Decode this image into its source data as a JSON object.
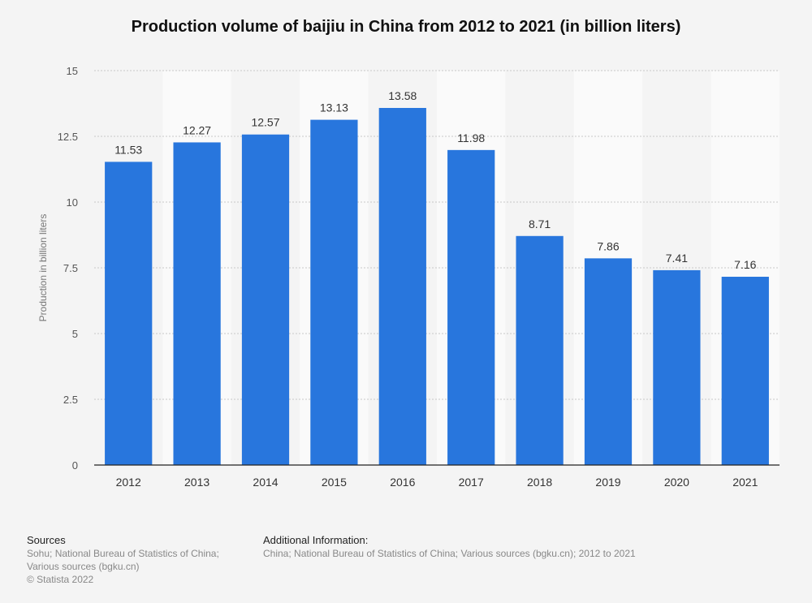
{
  "chart_data": {
    "type": "bar",
    "title": "Production volume of baijiu in China from 2012 to 2021 (in billion liters)",
    "xlabel": "",
    "ylabel": "Production in billion liters",
    "categories": [
      "2012",
      "2013",
      "2014",
      "2015",
      "2016",
      "2017",
      "2018",
      "2019",
      "2020",
      "2021"
    ],
    "values": [
      11.53,
      12.27,
      12.57,
      13.13,
      13.58,
      11.98,
      8.71,
      7.86,
      7.41,
      7.16
    ],
    "value_labels": [
      "11.53",
      "12.27",
      "12.57",
      "13.13",
      "13.58",
      "11.98",
      "8.71",
      "7.86",
      "7.41",
      "7.16"
    ],
    "ylim": [
      0,
      15
    ],
    "yticks": [
      0,
      2.5,
      5,
      7.5,
      10,
      12.5,
      15
    ],
    "ytick_labels": [
      "0",
      "2.5",
      "5",
      "7.5",
      "10",
      "12.5",
      "15"
    ],
    "grid": true,
    "bar_color": "#2876dd"
  },
  "footer": {
    "sources_heading": "Sources",
    "sources_lines": [
      "Sohu; National Bureau of Statistics of China;",
      "Various sources (bgku.cn)",
      "© Statista 2022"
    ],
    "additional_heading": "Additional Information:",
    "additional_text": "China; National Bureau of Statistics of China; Various sources (bgku.cn); 2012 to 2021"
  }
}
